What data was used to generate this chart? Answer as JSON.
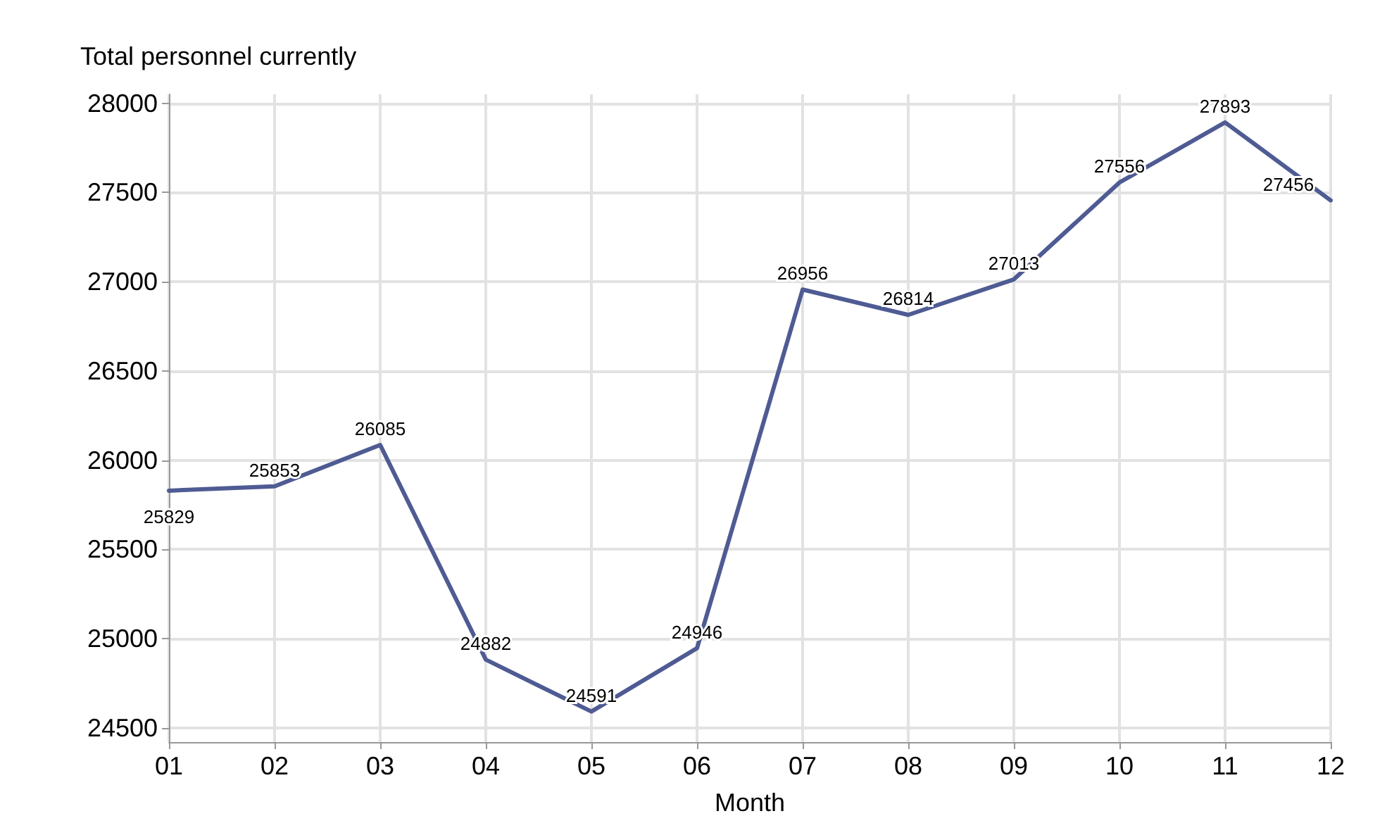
{
  "chart_data": {
    "type": "line",
    "ylabel": "Total personnel currently",
    "xlabel": "Month",
    "categories": [
      "01",
      "02",
      "03",
      "04",
      "05",
      "06",
      "07",
      "08",
      "09",
      "10",
      "11",
      "12"
    ],
    "series": [
      {
        "color": "#4f5b93",
        "values": [
          25829,
          25853,
          26085,
          24882,
          24591,
          24946,
          26956,
          26814,
          27013,
          27556,
          27893,
          27456
        ]
      }
    ],
    "ylim": [
      24420,
      28050
    ],
    "yticks": [
      24500,
      25000,
      25500,
      26000,
      26500,
      27000,
      27500,
      28000
    ],
    "grid": true,
    "data_labels": true,
    "marker": "none",
    "line_style": "solid"
  }
}
